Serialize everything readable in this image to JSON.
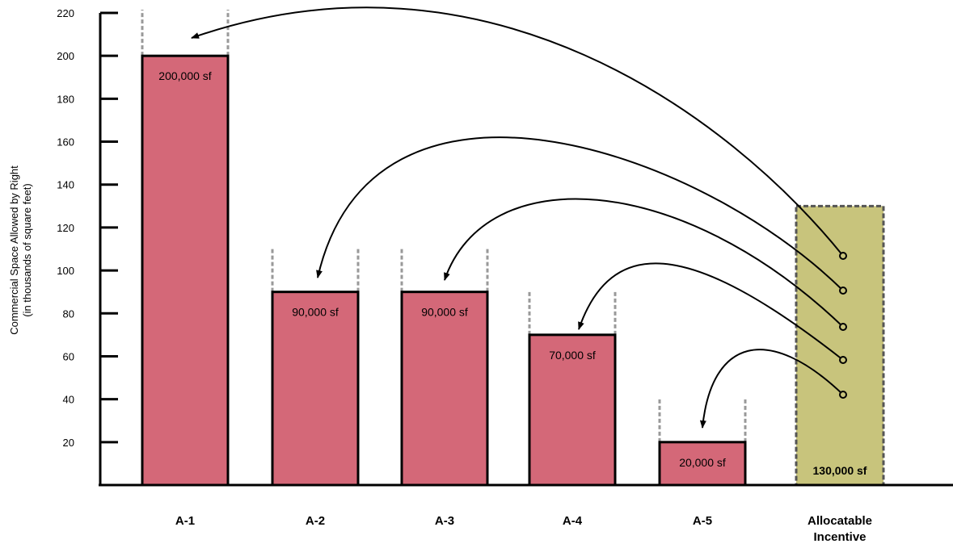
{
  "chart_data": {
    "type": "bar",
    "title": "",
    "ylabel_lines": [
      "Commercial Space Allowed by Right",
      "(in thousands of square feet)"
    ],
    "xlabel": "",
    "ylim": [
      0,
      220
    ],
    "yticks": [
      20,
      40,
      60,
      80,
      100,
      120,
      140,
      160,
      180,
      200,
      220
    ],
    "grid": false,
    "legend": "none",
    "categories": [
      "A-1",
      "A-2",
      "A-3",
      "A-4",
      "A-5"
    ],
    "values": [
      200,
      90,
      90,
      70,
      20
    ],
    "value_labels": [
      "200,000 sf",
      "90,000 sf",
      "90,000 sf",
      "70,000 sf",
      "20,000 sf"
    ],
    "potential_max": [
      225,
      110,
      110,
      90,
      41
    ],
    "incentive": {
      "category_lines": [
        "Allocatable",
        "Incentive"
      ],
      "value": 130,
      "value_label": "130,000 sf"
    },
    "colors": {
      "bar": "#d46878",
      "incentive": "#c8c47c",
      "potential_line": "#999999",
      "axis": "#000000"
    }
  }
}
